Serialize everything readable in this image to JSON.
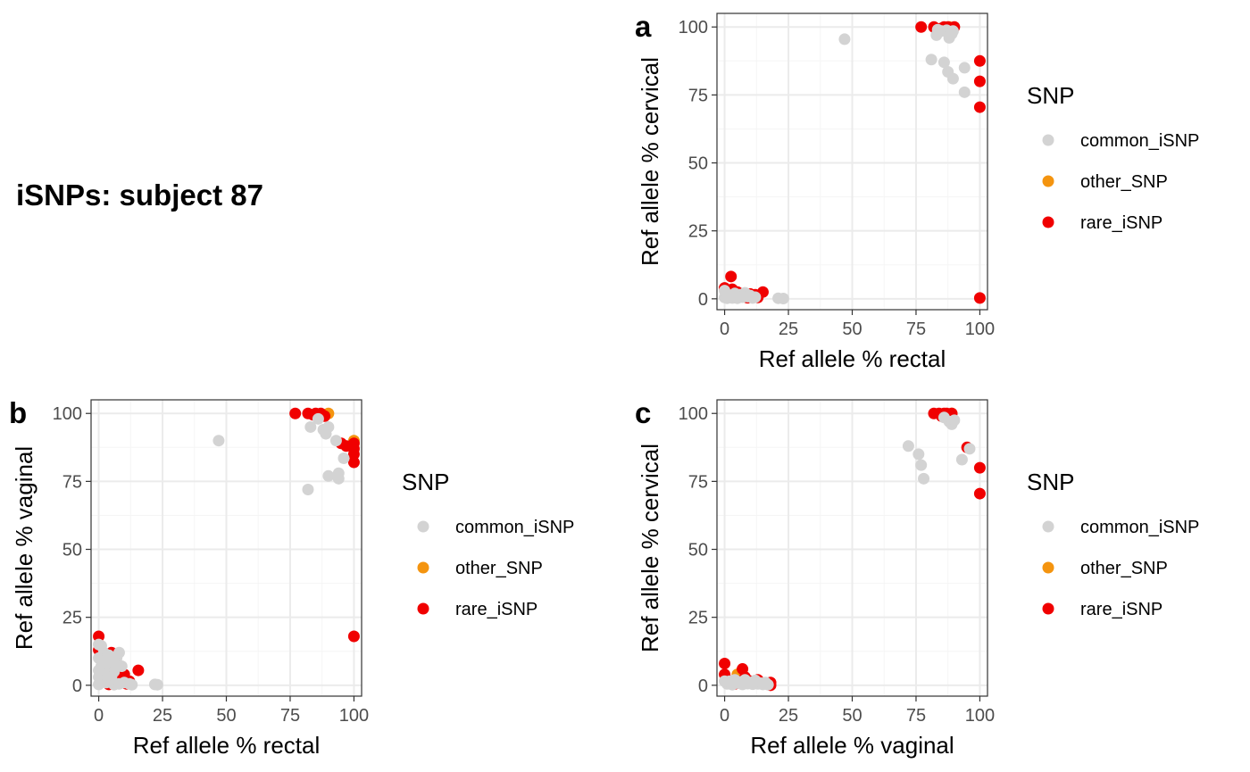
{
  "figure": {
    "title": "iSNPs: subject 87"
  },
  "colors": {
    "common_iSNP": "#D3D3D3",
    "other_SNP": "#F4940F",
    "rare_iSNP": "#F00000",
    "panel_border": "#333333",
    "grid_major": "#EBEBEB",
    "grid_minor": "#F5F5F5"
  },
  "chart_data": [
    {
      "panel_tag": "a",
      "type": "scatter",
      "xlabel": "Ref allele % rectal",
      "ylabel": "Ref allele % cervical",
      "xlim": [
        -3,
        103
      ],
      "ylim": [
        -4,
        105
      ],
      "xticks": [
        "0",
        "25",
        "50",
        "75",
        "100"
      ],
      "yticks": [
        "0",
        "25",
        "50",
        "75",
        "100"
      ],
      "grid": true,
      "legend": {
        "title": "SNP",
        "entries": [
          "common_iSNP",
          "other_SNP",
          "rare_iSNP"
        ],
        "placement": "right"
      },
      "series": [
        {
          "name": "other_SNP",
          "points": [
            [
              89.5,
              99.8
            ],
            [
              88.0,
              100
            ],
            [
              2.5,
              0.8
            ]
          ]
        },
        {
          "name": "rare_iSNP",
          "points": [
            [
              77,
              100
            ],
            [
              82,
              100
            ],
            [
              85,
              99.5
            ],
            [
              86,
              100
            ],
            [
              87.5,
              100
            ],
            [
              88.5,
              99
            ],
            [
              90,
              100
            ],
            [
              100,
              87.5
            ],
            [
              100,
              80
            ],
            [
              100,
              70.5
            ],
            [
              100,
              0.3
            ],
            [
              2.5,
              8.2
            ],
            [
              0,
              4
            ],
            [
              0.5,
              2.8
            ],
            [
              1.5,
              1.2
            ],
            [
              3,
              3.5
            ],
            [
              3.5,
              1.5
            ],
            [
              4,
              0.5
            ],
            [
              5,
              2.5
            ],
            [
              6,
              0.8
            ],
            [
              8,
              1.2
            ],
            [
              9,
              0.4
            ],
            [
              10,
              1.8
            ],
            [
              12,
              1.5
            ],
            [
              15,
              2.5
            ],
            [
              13,
              0.5
            ]
          ]
        },
        {
          "name": "common_iSNP",
          "points": [
            [
              47,
              95.5
            ],
            [
              81,
              88
            ],
            [
              86,
              87
            ],
            [
              87.5,
              83.5
            ],
            [
              89.5,
              81
            ],
            [
              94,
              85
            ],
            [
              94,
              76
            ],
            [
              83,
              97
            ],
            [
              83.5,
              99
            ],
            [
              85,
              98.5
            ],
            [
              87,
              98.8
            ],
            [
              88,
              96
            ],
            [
              89,
              97.5
            ],
            [
              89.5,
              98.5
            ],
            [
              21,
              0.2
            ],
            [
              23,
              0.1
            ],
            [
              0,
              0.5
            ],
            [
              0.5,
              1.8
            ],
            [
              1,
              0.2
            ],
            [
              2,
              1
            ],
            [
              3,
              0.3
            ],
            [
              4,
              2
            ],
            [
              5,
              0.2
            ],
            [
              6,
              1.5
            ],
            [
              7,
              0.6
            ],
            [
              8,
              2.2
            ],
            [
              9,
              0.8
            ],
            [
              10,
              1.2
            ],
            [
              11,
              0.3
            ],
            [
              12,
              0.6
            ],
            [
              0,
              3
            ]
          ]
        }
      ]
    },
    {
      "panel_tag": "b",
      "type": "scatter",
      "xlabel": "Ref allele % rectal",
      "ylabel": "Ref allele % vaginal",
      "xlim": [
        -3,
        103
      ],
      "ylim": [
        -4,
        105
      ],
      "xticks": [
        "0",
        "25",
        "50",
        "75",
        "100"
      ],
      "yticks": [
        "0",
        "25",
        "50",
        "75",
        "100"
      ],
      "grid": true,
      "legend": {
        "title": "SNP",
        "entries": [
          "common_iSNP",
          "other_SNP",
          "rare_iSNP"
        ],
        "placement": "right"
      },
      "series": [
        {
          "name": "other_SNP",
          "points": [
            [
              90,
              100
            ],
            [
              100,
              90
            ],
            [
              88,
              99.5
            ]
          ]
        },
        {
          "name": "rare_iSNP",
          "points": [
            [
              77,
              100
            ],
            [
              82,
              100
            ],
            [
              84,
              99.5
            ],
            [
              85,
              100
            ],
            [
              86,
              99
            ],
            [
              87,
              100
            ],
            [
              88.5,
              99
            ],
            [
              95,
              89
            ],
            [
              97,
              88
            ],
            [
              100,
              89
            ],
            [
              100,
              87
            ],
            [
              100,
              85
            ],
            [
              100,
              82
            ],
            [
              100,
              18
            ],
            [
              0,
              18
            ],
            [
              0,
              13
            ],
            [
              1,
              10
            ],
            [
              3,
              8
            ],
            [
              4,
              4
            ],
            [
              5,
              12
            ],
            [
              6,
              2
            ],
            [
              7,
              1
            ],
            [
              8,
              3
            ],
            [
              10,
              4
            ],
            [
              11,
              0.5
            ],
            [
              12,
              1.5
            ],
            [
              15.5,
              5.5
            ],
            [
              2,
              1.5
            ],
            [
              4,
              0.3
            ]
          ]
        },
        {
          "name": "common_iSNP",
          "points": [
            [
              47,
              90
            ],
            [
              82,
              72
            ],
            [
              90,
              77
            ],
            [
              94,
              78
            ],
            [
              94,
              76
            ],
            [
              96,
              83.5
            ],
            [
              83,
              95
            ],
            [
              86,
              98
            ],
            [
              88,
              94
            ],
            [
              89,
              92.5
            ],
            [
              90,
              95
            ],
            [
              93,
              90
            ],
            [
              22,
              0.3
            ],
            [
              23,
              0.2
            ],
            [
              0,
              15
            ],
            [
              1,
              14.5
            ],
            [
              2,
              12
            ],
            [
              0,
              10
            ],
            [
              1,
              7
            ],
            [
              2,
              9
            ],
            [
              3,
              6
            ],
            [
              4,
              11
            ],
            [
              5,
              8
            ],
            [
              6,
              5
            ],
            [
              7,
              10
            ],
            [
              8,
              12
            ],
            [
              9,
              7
            ],
            [
              0,
              3
            ],
            [
              1,
              2
            ],
            [
              2,
              4
            ],
            [
              3,
              1
            ],
            [
              5,
              3
            ],
            [
              6,
              0.2
            ],
            [
              8,
              0.5
            ],
            [
              10,
              1
            ],
            [
              12,
              0.5
            ],
            [
              13,
              0.2
            ],
            [
              0,
              0.3
            ],
            [
              0,
              5.5
            ]
          ]
        }
      ]
    },
    {
      "panel_tag": "c",
      "type": "scatter",
      "xlabel": "Ref allele % vaginal",
      "ylabel": "Ref allele % cervical",
      "xlim": [
        -3,
        103
      ],
      "ylim": [
        -4,
        105
      ],
      "xticks": [
        "0",
        "25",
        "50",
        "75",
        "100"
      ],
      "yticks": [
        "0",
        "25",
        "50",
        "75",
        "100"
      ],
      "grid": true,
      "legend": {
        "title": "SNP",
        "entries": [
          "common_iSNP",
          "other_SNP",
          "rare_iSNP"
        ],
        "placement": "right"
      },
      "series": [
        {
          "name": "other_SNP",
          "points": [
            [
              89,
              100
            ],
            [
              5,
              4
            ],
            [
              6,
              2
            ]
          ]
        },
        {
          "name": "rare_iSNP",
          "points": [
            [
              82,
              100
            ],
            [
              84,
              100
            ],
            [
              85,
              99
            ],
            [
              86,
              100
            ],
            [
              87,
              100
            ],
            [
              88,
              99.5
            ],
            [
              89,
              100
            ],
            [
              95,
              87.5
            ],
            [
              100,
              80
            ],
            [
              100,
              70.5
            ],
            [
              0,
              8
            ],
            [
              0,
              4
            ],
            [
              1,
              2
            ],
            [
              3,
              1
            ],
            [
              7,
              6
            ],
            [
              8,
              3
            ],
            [
              10,
              1.5
            ],
            [
              13,
              2
            ],
            [
              18,
              1
            ],
            [
              18,
              0
            ],
            [
              4,
              0.5
            ],
            [
              12,
              0.8
            ]
          ]
        },
        {
          "name": "common_iSNP",
          "points": [
            [
              72,
              88
            ],
            [
              76,
              85
            ],
            [
              77,
              81
            ],
            [
              78,
              76
            ],
            [
              93,
              83
            ],
            [
              96,
              87
            ],
            [
              86,
              98.5
            ],
            [
              88,
              97
            ],
            [
              89,
              96
            ],
            [
              90,
              97.5
            ],
            [
              1,
              0.5
            ],
            [
              2,
              1.5
            ],
            [
              3,
              0.2
            ],
            [
              4,
              2
            ],
            [
              5,
              0.8
            ],
            [
              6,
              1.2
            ],
            [
              7,
              0.3
            ],
            [
              8,
              2
            ],
            [
              9,
              0.6
            ],
            [
              10,
              1
            ],
            [
              11,
              0.4
            ],
            [
              12,
              1.8
            ],
            [
              13,
              0.5
            ],
            [
              14,
              0.8
            ],
            [
              15,
              0.3
            ],
            [
              16,
              1
            ],
            [
              0,
              1.5
            ],
            [
              17,
              0.2
            ]
          ]
        }
      ]
    }
  ]
}
